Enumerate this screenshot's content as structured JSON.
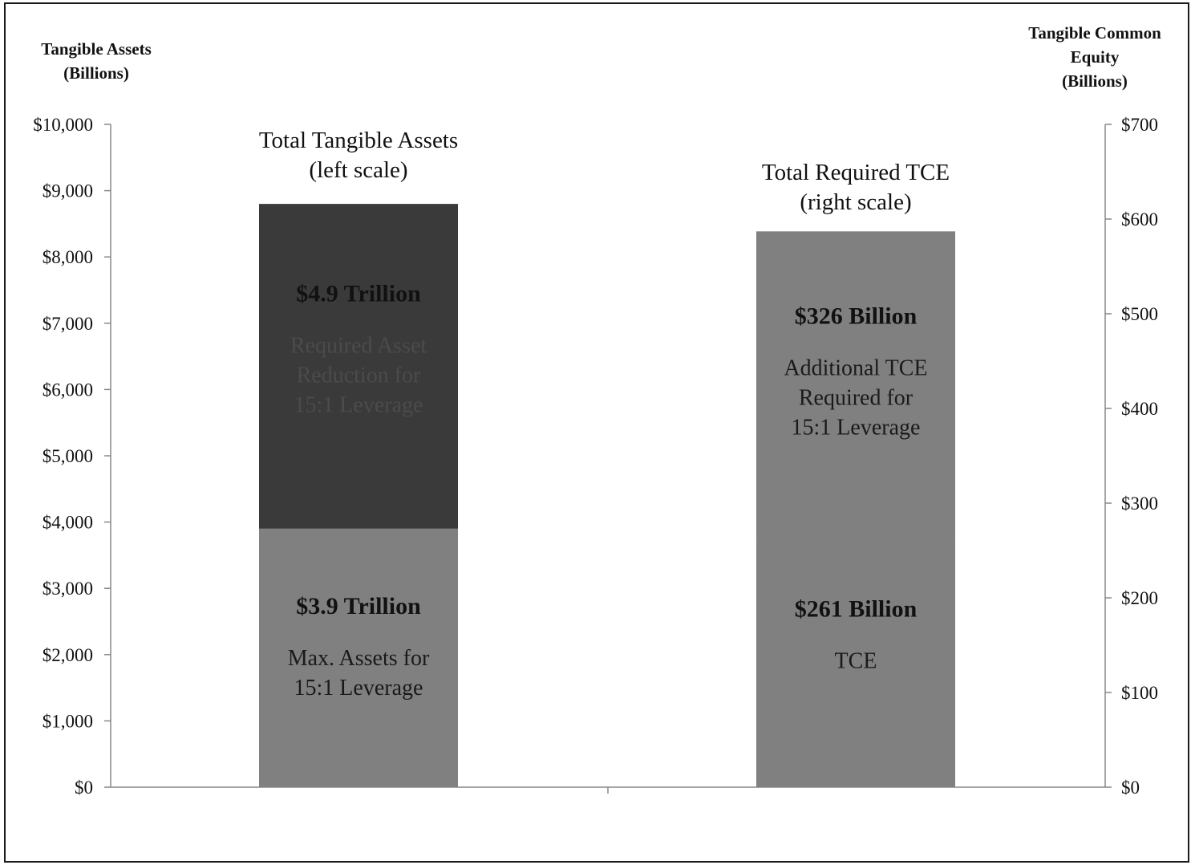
{
  "chart_data": {
    "type": "bar",
    "left_axis": {
      "title_line1": "Tangible Assets",
      "title_line2": "(Billions)",
      "ylim": [
        0,
        10000
      ],
      "ticks": [
        0,
        1000,
        2000,
        3000,
        4000,
        5000,
        6000,
        7000,
        8000,
        9000,
        10000
      ],
      "tick_labels": [
        "$0",
        "$1,000",
        "$2,000",
        "$3,000",
        "$4,000",
        "$5,000",
        "$6,000",
        "$7,000",
        "$8,000",
        "$9,000",
        "$10,000"
      ]
    },
    "right_axis": {
      "title_line1": "Tangible Common",
      "title_line2": "Equity",
      "title_line3": "(Billions)",
      "ylim": [
        0,
        700
      ],
      "ticks": [
        0,
        100,
        200,
        300,
        400,
        500,
        600,
        700
      ],
      "tick_labels": [
        "$0",
        "$100",
        "$200",
        "$300",
        "$400",
        "$500",
        "$600",
        "$700"
      ]
    },
    "bars": [
      {
        "name_line1": "Total Tangible Assets",
        "name_line2": "(left scale)",
        "axis": "left",
        "segments": [
          {
            "value": 3900,
            "color": "#808080",
            "value_label": "$3.9 Trillion",
            "desc": [
              "Max. Assets  for",
              "15:1 Leverage"
            ]
          },
          {
            "value": 4900,
            "color": "#3a3a3a",
            "value_label": "$4.9 Trillion",
            "desc": [
              "Required Asset",
              "Reduction for",
              "15:1 Leverage"
            ]
          }
        ]
      },
      {
        "name_line1": "Total Required TCE",
        "name_line2": "(right scale)",
        "axis": "right",
        "segments": [
          {
            "value": 261,
            "color": "#808080",
            "value_label": "$261 Billion",
            "desc": [
              "TCE"
            ]
          },
          {
            "value": 326,
            "color": "#808080",
            "value_label": "$326 Billion",
            "desc": [
              "Additional TCE",
              "Required  for",
              "15:1 Leverage"
            ]
          }
        ]
      }
    ]
  }
}
